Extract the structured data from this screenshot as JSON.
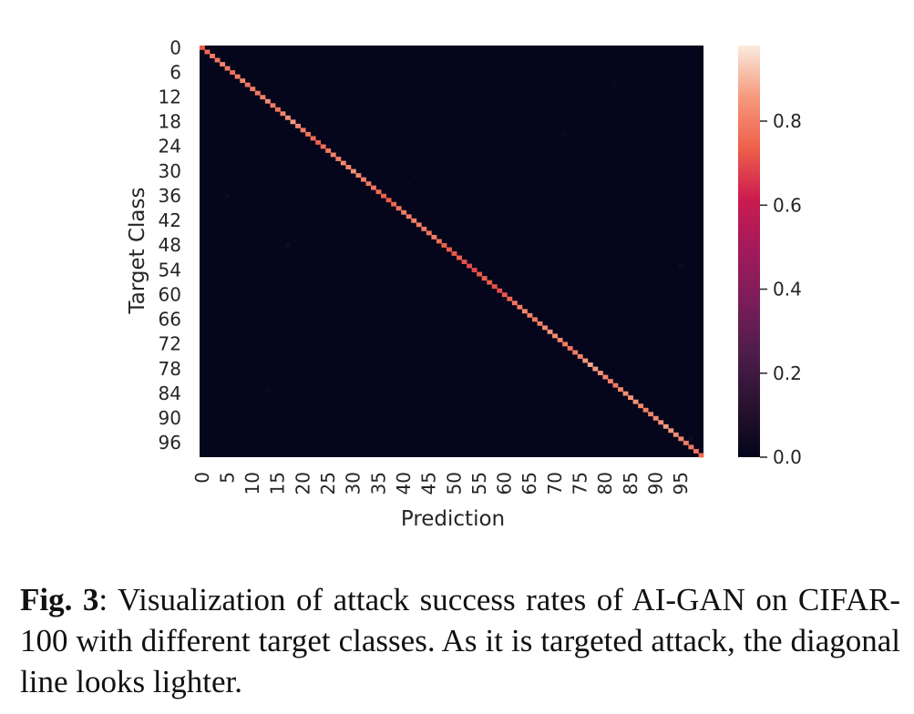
{
  "chart_data": {
    "type": "heatmap",
    "rows": 100,
    "cols": 100,
    "ylabel": "Target Class",
    "xlabel": "Prediction",
    "y_ticks": [
      0,
      6,
      12,
      18,
      24,
      30,
      36,
      42,
      48,
      54,
      60,
      66,
      72,
      78,
      84,
      90,
      96
    ],
    "x_ticks": [
      0,
      5,
      10,
      15,
      20,
      25,
      30,
      35,
      40,
      45,
      50,
      55,
      60,
      65,
      70,
      75,
      80,
      85,
      90,
      95
    ],
    "colorbar": {
      "min": 0.0,
      "max": 0.98,
      "ticks": [
        0.0,
        0.2,
        0.4,
        0.6,
        0.8
      ]
    },
    "colormap": "rocket",
    "off_diagonal_value": 0.005,
    "diagonal_values": [
      0.72,
      0.76,
      0.8,
      0.78,
      0.81,
      0.79,
      0.77,
      0.8,
      0.82,
      0.78,
      0.8,
      0.79,
      0.81,
      0.83,
      0.8,
      0.78,
      0.82,
      0.84,
      0.86,
      0.83,
      0.8,
      0.78,
      0.76,
      0.74,
      0.77,
      0.79,
      0.81,
      0.8,
      0.83,
      0.82,
      0.84,
      0.81,
      0.8,
      0.79,
      0.78,
      0.76,
      0.74,
      0.73,
      0.75,
      0.78,
      0.8,
      0.79,
      0.81,
      0.8,
      0.79,
      0.78,
      0.8,
      0.76,
      0.74,
      0.73,
      0.72,
      0.74,
      0.71,
      0.7,
      0.69,
      0.72,
      0.74,
      0.73,
      0.71,
      0.7,
      0.72,
      0.75,
      0.78,
      0.8,
      0.82,
      0.81,
      0.79,
      0.8,
      0.82,
      0.84,
      0.83,
      0.81,
      0.8,
      0.78,
      0.79,
      0.81,
      0.85,
      0.88,
      0.86,
      0.84,
      0.82,
      0.8,
      0.79,
      0.81,
      0.83,
      0.85,
      0.84,
      0.82,
      0.8,
      0.81,
      0.83,
      0.84,
      0.86,
      0.85,
      0.83,
      0.82,
      0.8,
      0.79,
      0.78,
      0.76
    ],
    "off_diagonal_outliers": [
      {
        "row": 36,
        "col": 5,
        "value": 0.04
      },
      {
        "row": 48,
        "col": 17,
        "value": 0.05
      },
      {
        "row": 33,
        "col": 41,
        "value": 0.03
      },
      {
        "row": 53,
        "col": 95,
        "value": 0.04
      },
      {
        "row": 21,
        "col": 72,
        "value": 0.03
      },
      {
        "row": 9,
        "col": 82,
        "value": 0.03
      },
      {
        "row": 61,
        "col": 60,
        "value": 0.04
      },
      {
        "row": 83,
        "col": 13,
        "value": 0.03
      },
      {
        "row": 92,
        "col": 91,
        "value": 0.03
      },
      {
        "row": 95,
        "col": 97,
        "value": 0.04
      },
      {
        "row": 2,
        "col": 63,
        "value": 0.03
      },
      {
        "row": 43,
        "col": 25,
        "value": 0.03
      }
    ]
  },
  "caption": {
    "label": "Fig. 3",
    "text": ": Visualization of attack success rates of AI-GAN on CIFAR-100 with different target classes. As it is targeted attack, the diagonal line looks lighter."
  }
}
